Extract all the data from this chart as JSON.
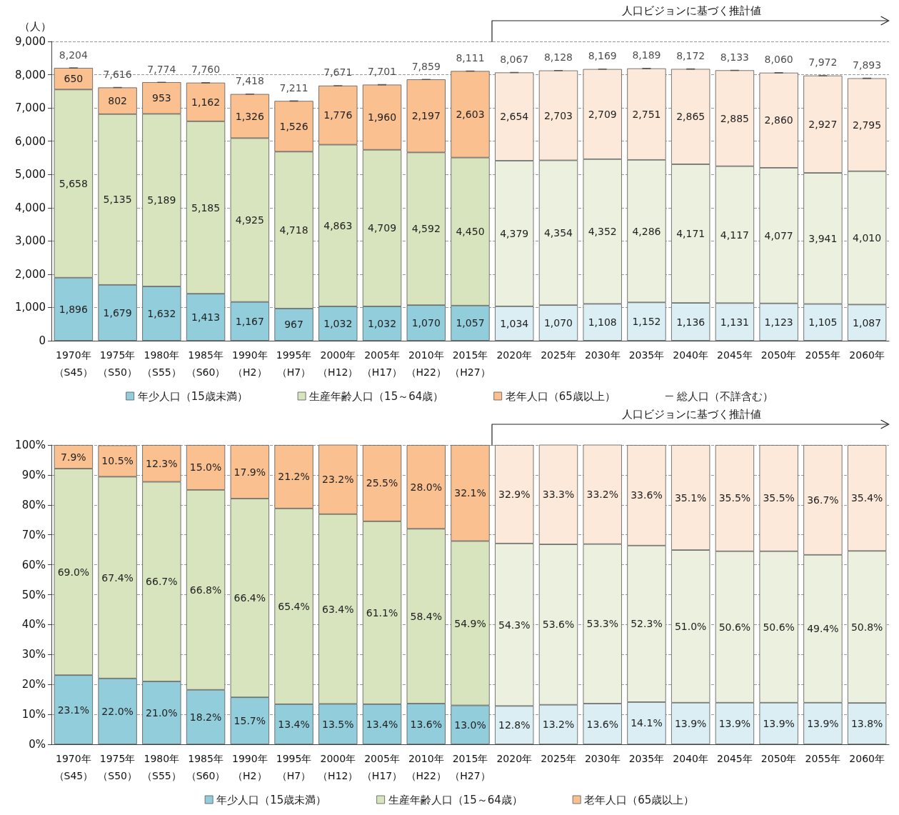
{
  "chart_data": [
    {
      "type": "bar",
      "stacked": true,
      "ylabel": "（人）",
      "ylim": [
        0,
        9000
      ],
      "yticks": [
        0,
        {
          "value": 1000,
          "label": "1,000"
        },
        {
          "value": 2000,
          "label": "2,000"
        },
        {
          "value": 3000,
          "label": "3,000"
        },
        {
          "value": 4000,
          "label": "4,000"
        },
        {
          "value": 5000,
          "label": "5,000"
        },
        {
          "value": 6000,
          "label": "6,000"
        },
        {
          "value": 7000,
          "label": "7,000"
        },
        {
          "value": 8000,
          "label": "8,000"
        },
        {
          "value": 9000,
          "label": "9,000"
        }
      ],
      "grid": "y",
      "legend": "bottom",
      "annotations": [
        "人口ビジョンに基づく推計値"
      ],
      "categories": [
        "1970年（S45）",
        "1975年（S50）",
        "1980年（S55）",
        "1985年（S60）",
        "1990年（H2）",
        "1995年（H7）",
        "2000年（H12）",
        "2005年（H17）",
        "2010年（H22）",
        "2015年（H27）",
        "2020年",
        "2025年",
        "2030年",
        "2035年",
        "2040年",
        "2045年",
        "2050年",
        "2055年",
        "2060年"
      ],
      "series": [
        {
          "name": "年少人口（15歳未満）",
          "color": "#92cddc",
          "colors": [
            "#92cddc",
            "#92cddc",
            "#92cddc",
            "#92cddc",
            "#92cddc",
            "#92cddc",
            "#92cddc",
            "#92cddc",
            "#92cddc",
            "#92cddc",
            "#daeef3",
            "#daeef3",
            "#daeef3",
            "#daeef3",
            "#daeef3",
            "#daeef3",
            "#daeef3",
            "#daeef3",
            "#daeef3"
          ],
          "values": [
            1896,
            1679,
            1632,
            1413,
            1167,
            967,
            1032,
            1032,
            1070,
            1057,
            1034,
            1070,
            1108,
            1152,
            1136,
            1131,
            1123,
            1105,
            1087
          ],
          "value_labels": [
            "1,896",
            "1,679",
            "1,632",
            "1,413",
            "1,167",
            "967",
            "1,032",
            "1,032",
            "1,070",
            "1,057",
            "1,034",
            "1,070",
            "1,108",
            "1,152",
            "1,136",
            "1,131",
            "1,123",
            "1,105",
            "1,087"
          ]
        },
        {
          "name": "生産年齢人口（15～64歳）",
          "color": "#d7e4bd",
          "colors": [
            "#d7e4bd",
            "#d7e4bd",
            "#d7e4bd",
            "#d7e4bd",
            "#d7e4bd",
            "#d7e4bd",
            "#d7e4bd",
            "#d7e4bd",
            "#d7e4bd",
            "#d7e4bd",
            "#ebf1de",
            "#ebf1de",
            "#ebf1de",
            "#ebf1de",
            "#ebf1de",
            "#ebf1de",
            "#ebf1de",
            "#ebf1de",
            "#ebf1de"
          ],
          "values": [
            5658,
            5135,
            5189,
            5185,
            4925,
            4718,
            4863,
            4709,
            4592,
            4450,
            4379,
            4354,
            4352,
            4286,
            4171,
            4117,
            4077,
            3941,
            4010
          ],
          "value_labels": [
            "5,658",
            "5,135",
            "5,189",
            "5,185",
            "4,925",
            "4,718",
            "4,863",
            "4,709",
            "4,592",
            "4,450",
            "4,379",
            "4,354",
            "4,352",
            "4,286",
            "4,171",
            "4,117",
            "4,077",
            "3,941",
            "4,010"
          ]
        },
        {
          "name": "老年人口（65歳以上）",
          "color": "#fac090",
          "colors": [
            "#fac090",
            "#fac090",
            "#fac090",
            "#fac090",
            "#fac090",
            "#fac090",
            "#fac090",
            "#fac090",
            "#fac090",
            "#fac090",
            "#fde9d9",
            "#fde9d9",
            "#fde9d9",
            "#fde9d9",
            "#fde9d9",
            "#fde9d9",
            "#fde9d9",
            "#fde9d9",
            "#fde9d9"
          ],
          "values": [
            650,
            802,
            953,
            1162,
            1326,
            1526,
            1776,
            1960,
            2197,
            2603,
            2654,
            2703,
            2709,
            2751,
            2865,
            2885,
            2860,
            2927,
            2795
          ],
          "value_labels": [
            "650",
            "802",
            "953",
            "1,162",
            "1,326",
            "1,526",
            "1,776",
            "1,960",
            "2,197",
            "2,603",
            "2,654",
            "2,703",
            "2,709",
            "2,751",
            "2,865",
            "2,885",
            "2,860",
            "2,927",
            "2,795"
          ]
        },
        {
          "name": "総人口（不詳含む）",
          "type": "scatter",
          "color": "#404040",
          "x": [
            "1970年（S45）",
            "1975年（S50）",
            "1980年（S55）",
            "1985年（S60）",
            "1990年（H2）",
            "1995年（H7）",
            "2000年（H12）",
            "2005年（H17）",
            "2010年（H22）",
            "2015年（H27）",
            "2020年",
            "2025年",
            "2030年",
            "2035年",
            "2040年",
            "2045年",
            "2050年",
            "2055年",
            "2060年"
          ],
          "values": [
            8204,
            7616,
            7774,
            7760,
            7418,
            7211,
            7671,
            7701,
            7859,
            8111,
            8067,
            8128,
            8169,
            8189,
            8172,
            8133,
            8060,
            7972,
            7893
          ],
          "value_labels": [
            "8,204",
            "7,616",
            "7,774",
            "7,760",
            "7,418",
            "7,211",
            "7,671",
            "7,701",
            "7,859",
            "8,111",
            "8,067",
            "8,128",
            "8,169",
            "8,189",
            "8,172",
            "8,133",
            "8,060",
            "7,972",
            "7,893"
          ]
        }
      ]
    },
    {
      "type": "bar",
      "stacked": true,
      "ylim": [
        0,
        100
      ],
      "yticks": [
        {
          "value": 0,
          "label": "0%"
        },
        {
          "value": 10,
          "label": "10%"
        },
        {
          "value": 20,
          "label": "20%"
        },
        {
          "value": 30,
          "label": "30%"
        },
        {
          "value": 40,
          "label": "40%"
        },
        {
          "value": 50,
          "label": "50%"
        },
        {
          "value": 60,
          "label": "60%"
        },
        {
          "value": 70,
          "label": "70%"
        },
        {
          "value": 80,
          "label": "80%"
        },
        {
          "value": 90,
          "label": "90%"
        },
        {
          "value": 100,
          "label": "100%"
        }
      ],
      "grid": "y",
      "legend": "bottom",
      "annotations": [
        "人口ビジョンに基づく推計値"
      ],
      "categories": [
        "1970年（S45）",
        "1975年（S50）",
        "1980年（S55）",
        "1985年（S60）",
        "1990年（H2）",
        "1995年（H7）",
        "2000年（H12）",
        "2005年（H17）",
        "2010年（H22）",
        "2015年（H27）",
        "2020年",
        "2025年",
        "2030年",
        "2035年",
        "2040年",
        "2045年",
        "2050年",
        "2055年",
        "2060年"
      ],
      "series": [
        {
          "name": "年少人口（15歳未満）",
          "color": "#92cddc",
          "colors": [
            "#92cddc",
            "#92cddc",
            "#92cddc",
            "#92cddc",
            "#92cddc",
            "#92cddc",
            "#92cddc",
            "#92cddc",
            "#92cddc",
            "#92cddc",
            "#daeef3",
            "#daeef3",
            "#daeef3",
            "#daeef3",
            "#daeef3",
            "#daeef3",
            "#daeef3",
            "#daeef3",
            "#daeef3"
          ],
          "values": [
            23.1,
            22.0,
            21.0,
            18.2,
            15.7,
            13.4,
            13.5,
            13.4,
            13.6,
            13.0,
            12.8,
            13.2,
            13.6,
            14.1,
            13.9,
            13.9,
            13.9,
            13.9,
            13.8
          ],
          "value_labels": [
            "23.1%",
            "22.0%",
            "21.0%",
            "18.2%",
            "15.7%",
            "13.4%",
            "13.5%",
            "13.4%",
            "13.6%",
            "13.0%",
            "12.8%",
            "13.2%",
            "13.6%",
            "14.1%",
            "13.9%",
            "13.9%",
            "13.9%",
            "13.9%",
            "13.8%"
          ]
        },
        {
          "name": "生産年齢人口（15～64歳）",
          "color": "#d7e4bd",
          "colors": [
            "#d7e4bd",
            "#d7e4bd",
            "#d7e4bd",
            "#d7e4bd",
            "#d7e4bd",
            "#d7e4bd",
            "#d7e4bd",
            "#d7e4bd",
            "#d7e4bd",
            "#d7e4bd",
            "#ebf1de",
            "#ebf1de",
            "#ebf1de",
            "#ebf1de",
            "#ebf1de",
            "#ebf1de",
            "#ebf1de",
            "#ebf1de",
            "#ebf1de"
          ],
          "values": [
            69.0,
            67.4,
            66.7,
            66.8,
            66.4,
            65.4,
            63.4,
            61.1,
            58.4,
            54.9,
            54.3,
            53.6,
            53.3,
            52.3,
            51.0,
            50.6,
            50.6,
            49.4,
            50.8
          ],
          "value_labels": [
            "69.0%",
            "67.4%",
            "66.7%",
            "66.8%",
            "66.4%",
            "65.4%",
            "63.4%",
            "61.1%",
            "58.4%",
            "54.9%",
            "54.3%",
            "53.6%",
            "53.3%",
            "52.3%",
            "51.0%",
            "50.6%",
            "50.6%",
            "49.4%",
            "50.8%"
          ]
        },
        {
          "name": "老年人口（65歳以上）",
          "color": "#fac090",
          "colors": [
            "#fac090",
            "#fac090",
            "#fac090",
            "#fac090",
            "#fac090",
            "#fac090",
            "#fac090",
            "#fac090",
            "#fac090",
            "#fac090",
            "#fde9d9",
            "#fde9d9",
            "#fde9d9",
            "#fde9d9",
            "#fde9d9",
            "#fde9d9",
            "#fde9d9",
            "#fde9d9",
            "#fde9d9"
          ],
          "values": [
            7.9,
            10.5,
            12.3,
            15.0,
            17.9,
            21.2,
            23.2,
            25.5,
            28.0,
            32.1,
            32.9,
            33.3,
            33.2,
            33.6,
            35.1,
            35.5,
            35.5,
            36.7,
            35.4
          ],
          "value_labels": [
            "7.9%",
            "10.5%",
            "12.3%",
            "15.0%",
            "17.9%",
            "21.2%",
            "23.2%",
            "25.5%",
            "28.0%",
            "32.1%",
            "32.9%",
            "33.3%",
            "33.2%",
            "33.6%",
            "35.1%",
            "35.5%",
            "35.5%",
            "36.7%",
            "35.4%"
          ]
        }
      ]
    }
  ]
}
